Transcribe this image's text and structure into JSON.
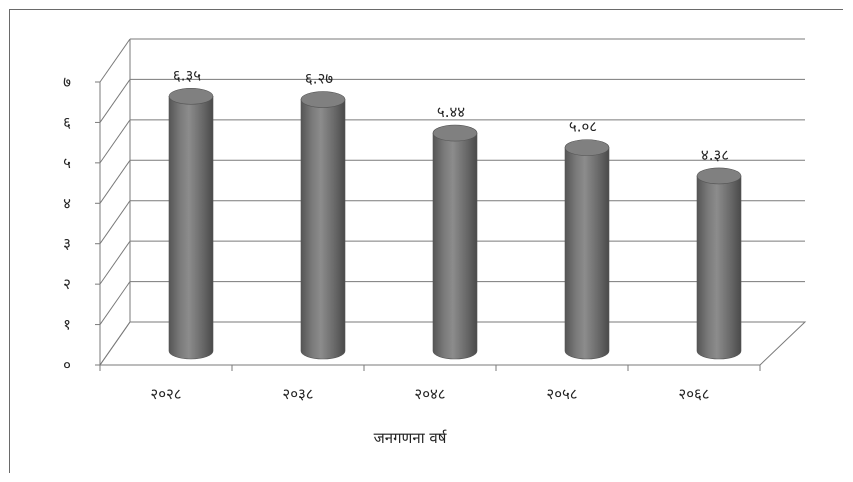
{
  "chart_data": {
    "type": "bar",
    "categories": [
      "२०२८",
      "२०३८",
      "२०४८",
      "२०५८",
      "२०६८"
    ],
    "values": [
      6.35,
      6.27,
      5.44,
      5.08,
      4.38
    ],
    "data_labels": [
      "६.३५",
      "६.२७",
      "५.४४",
      "५.०८",
      "४.३८"
    ],
    "y_tick_labels": [
      "०",
      "१",
      "२",
      "३",
      "४",
      "५",
      "६",
      "७"
    ],
    "ylim": [
      0,
      7
    ],
    "title": "",
    "xlabel": "जनगणना वर्ष",
    "ylabel": "",
    "grid": true,
    "style": "3d-cylinder",
    "bar_color": "#707070"
  }
}
